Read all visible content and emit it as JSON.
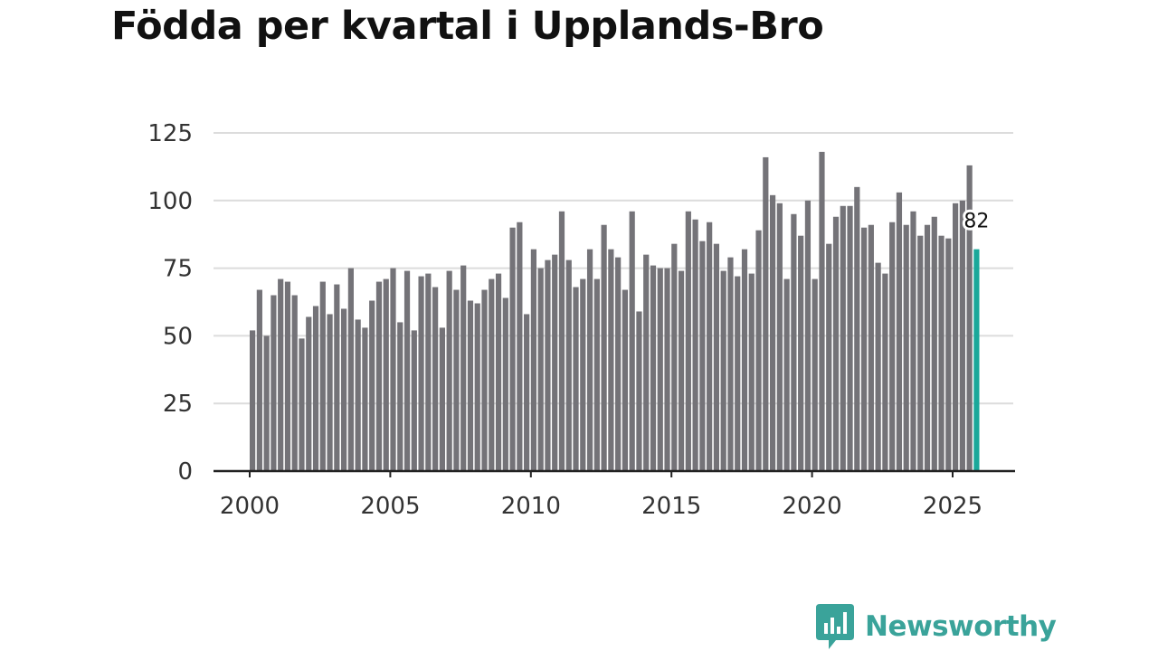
{
  "chart_data": {
    "type": "bar",
    "title": "Födda per kvartal i Upplands-Bro",
    "xlabel": "",
    "ylabel": "",
    "ylim": [
      0,
      125
    ],
    "yticks": [
      0,
      25,
      50,
      75,
      100,
      125
    ],
    "xticks": [
      "2000",
      "2005",
      "2010",
      "2015",
      "2020",
      "2025"
    ],
    "grid": true,
    "highlight_label": "82",
    "colors": {
      "bar": "#747378",
      "highlight": "#1aa89a",
      "grid": "#dcdcdc",
      "axis": "#222222"
    },
    "series": [
      {
        "name": "Födda",
        "values": [
          52,
          67,
          50,
          65,
          71,
          70,
          65,
          49,
          57,
          61,
          70,
          58,
          69,
          60,
          75,
          56,
          53,
          63,
          70,
          71,
          75,
          55,
          74,
          52,
          72,
          73,
          68,
          53,
          74,
          67,
          76,
          63,
          62,
          67,
          71,
          73,
          64,
          90,
          92,
          58,
          82,
          75,
          78,
          80,
          96,
          78,
          68,
          71,
          82,
          71,
          91,
          82,
          79,
          67,
          96,
          59,
          80,
          76,
          75,
          75,
          84,
          74,
          96,
          93,
          85,
          92,
          84,
          74,
          79,
          72,
          82,
          73,
          89,
          116,
          102,
          99,
          71,
          95,
          87,
          100,
          71,
          118,
          84,
          94,
          98,
          98,
          105,
          90,
          91,
          77,
          73,
          92,
          103,
          91,
          96,
          87,
          91,
          94,
          87,
          86,
          99,
          100,
          113,
          82
        ]
      }
    ]
  },
  "brand": {
    "name": "Newsworthy",
    "logo_icon": "newsworthy-logo-icon",
    "color": "#3aa39a"
  }
}
